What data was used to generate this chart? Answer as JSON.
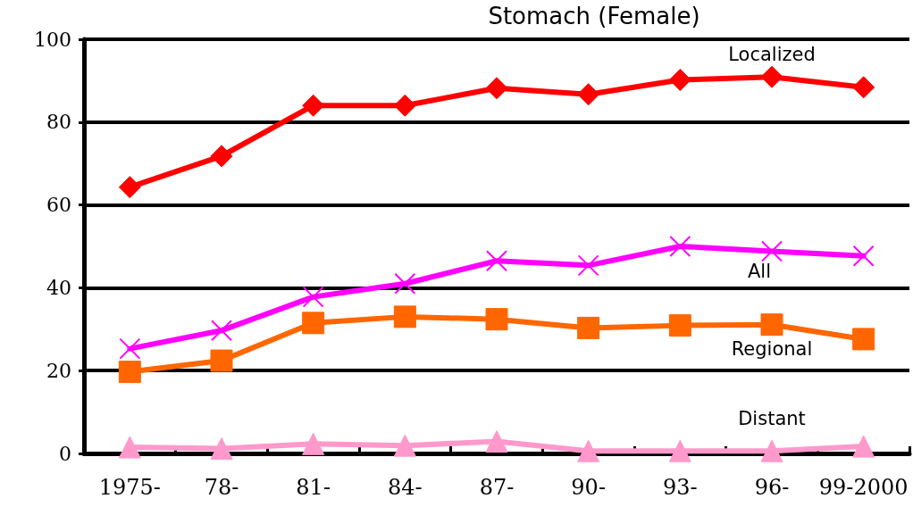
{
  "chart_data": {
    "type": "line",
    "title": "Stomach (Female)",
    "categories": [
      "1975-",
      "78-",
      "81-",
      "84-",
      "87-",
      "90-",
      "93-",
      "96-",
      "99-2000"
    ],
    "series": [
      {
        "name": "Localized",
        "color": "#ff0000",
        "marker": "diamond",
        "values": [
          64.3,
          71.8,
          84,
          84,
          88.2,
          86.7,
          90.2,
          90.9,
          88.4
        ]
      },
      {
        "name": "All",
        "color": "#ff00ff",
        "marker": "cross",
        "values": [
          25.3,
          29.7,
          37.8,
          41,
          46.5,
          45.4,
          50,
          48.8,
          47.7
        ]
      },
      {
        "name": "Regional",
        "color": "#ff6600",
        "marker": "square",
        "values": [
          19.7,
          22.4,
          31.5,
          33,
          32.4,
          30.3,
          30.9,
          31.1,
          27.6
        ]
      },
      {
        "name": "Distant",
        "color": "#ff99cc",
        "marker": "triangle",
        "values": [
          1.5,
          1.2,
          2.3,
          1.9,
          2.9,
          0.6,
          0.6,
          0.6,
          1.7
        ]
      }
    ],
    "ylim": [
      0,
      100
    ],
    "yticks": [
      0,
      20,
      40,
      60,
      80,
      100
    ],
    "grid": "y",
    "legend": false,
    "line_style": "solid"
  }
}
